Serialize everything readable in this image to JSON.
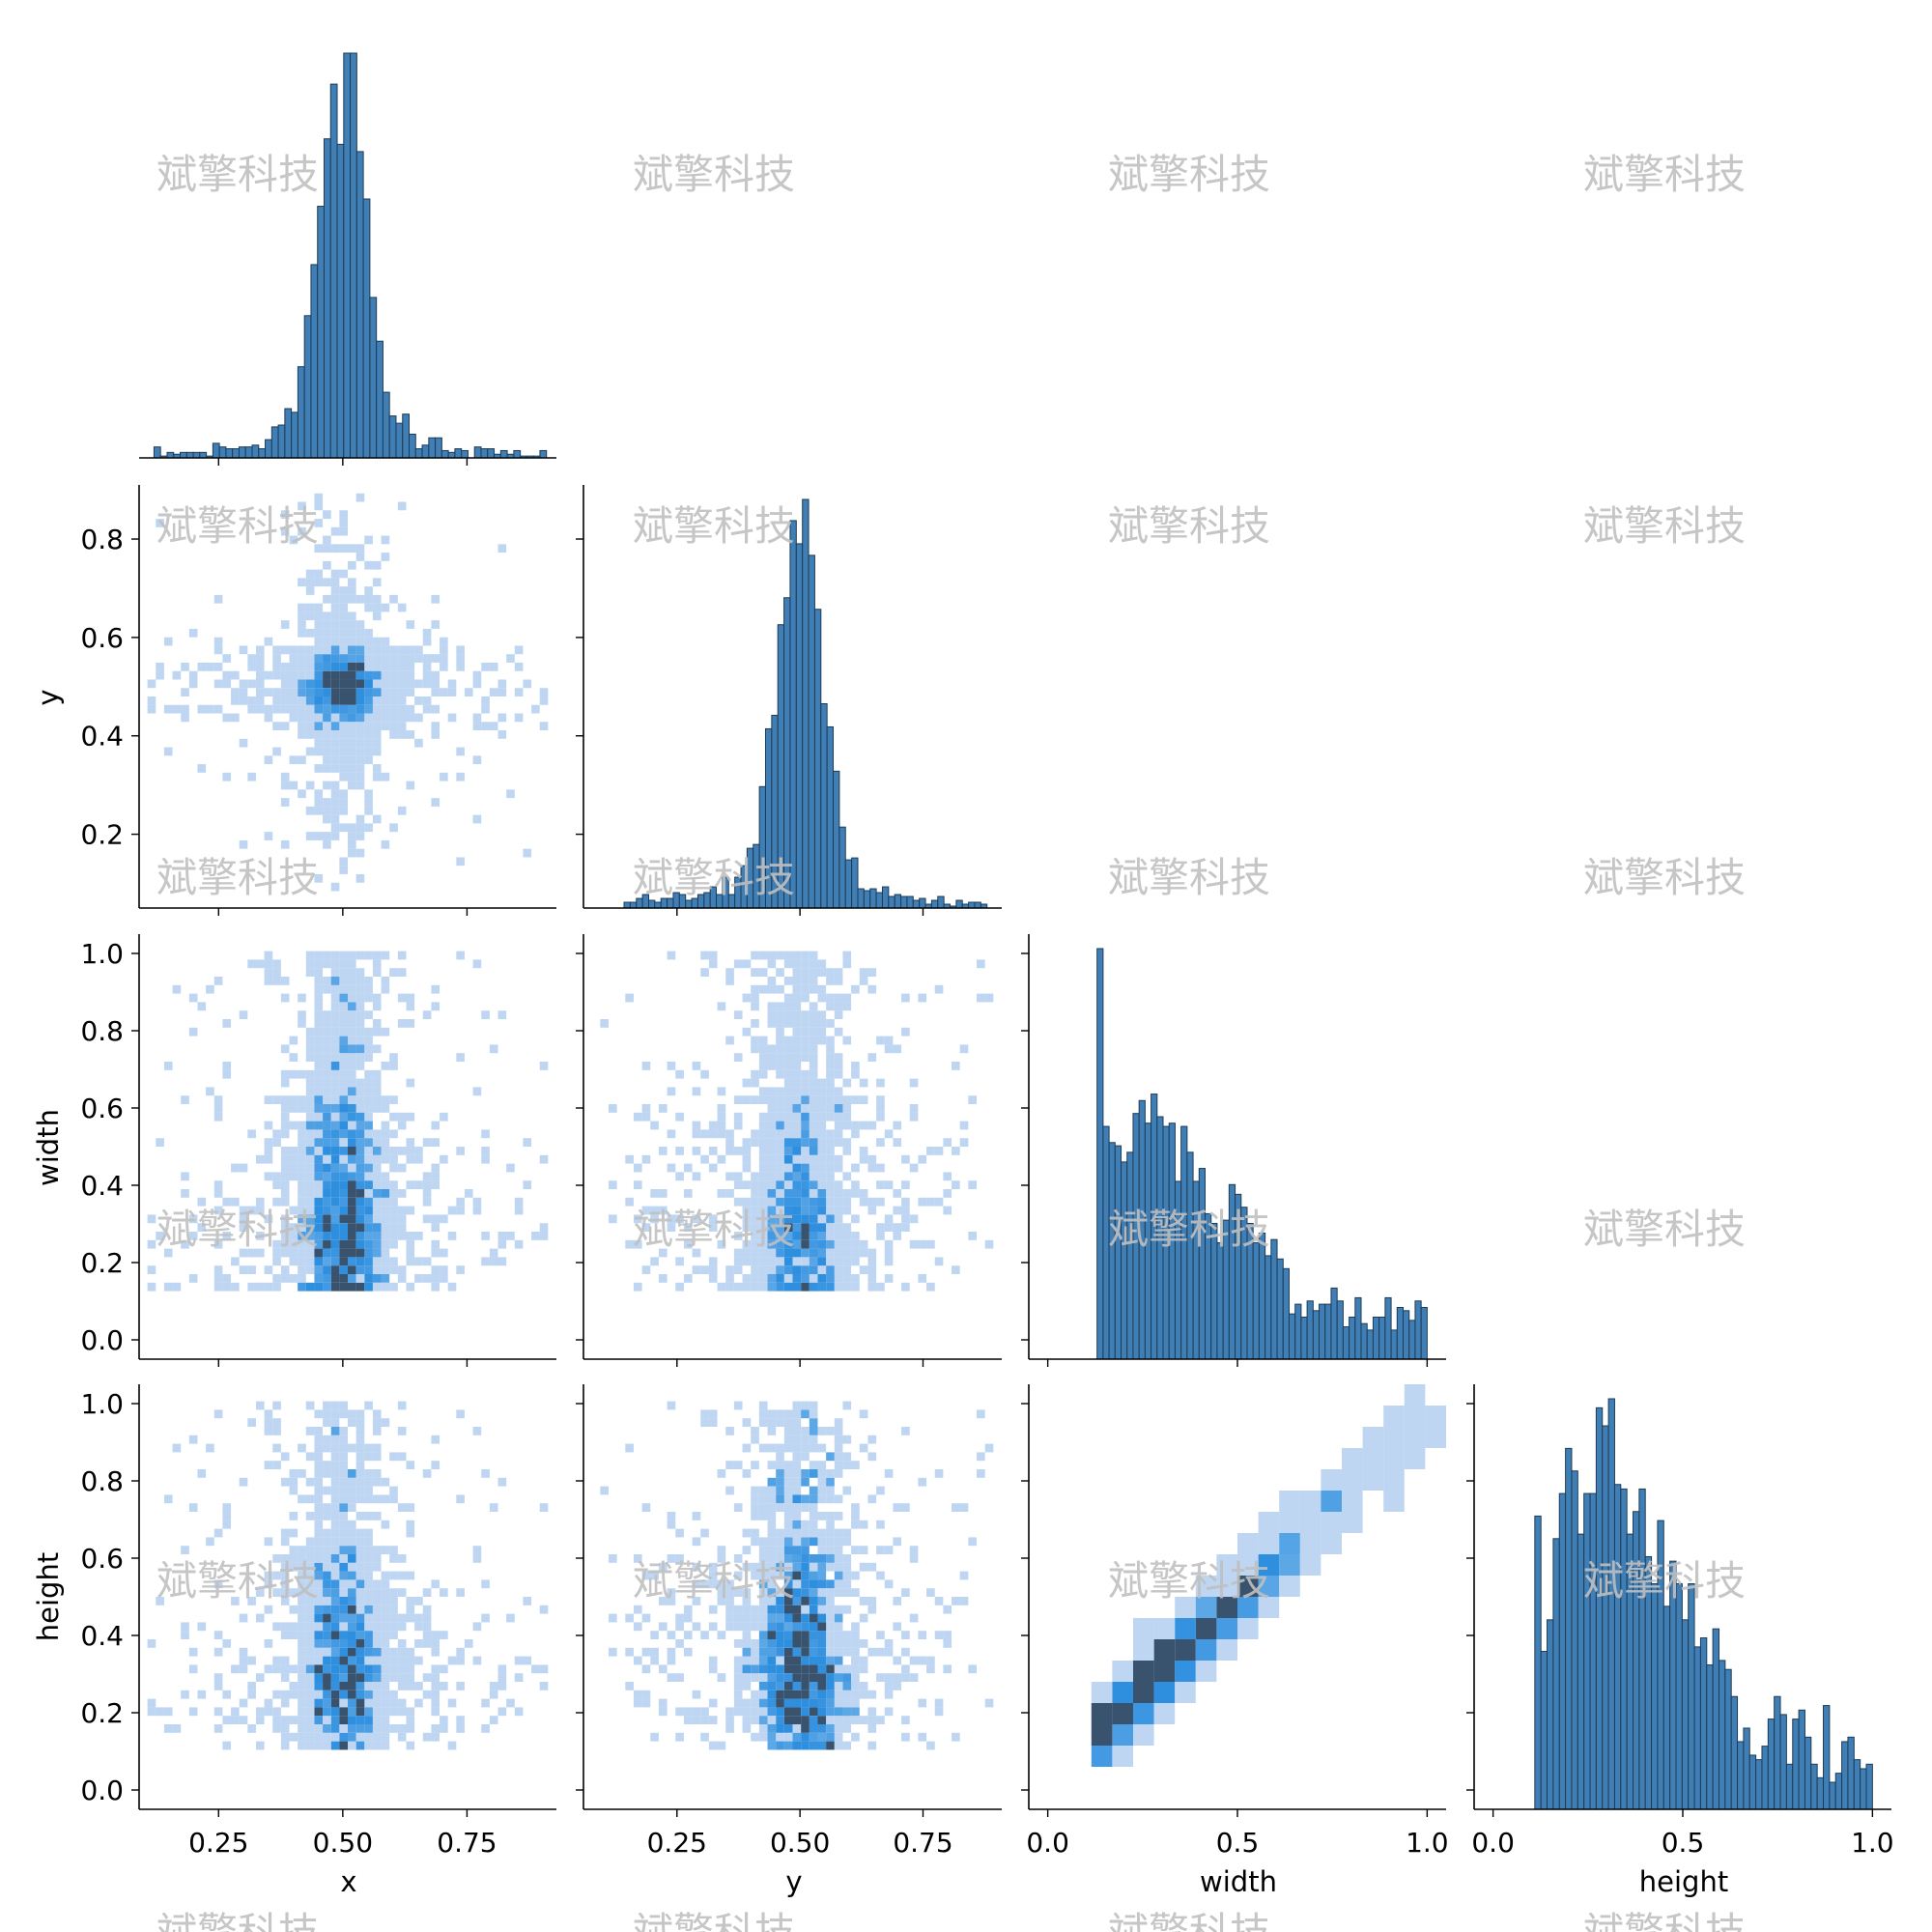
{
  "watermark_text": "斌擎科技",
  "chart_data": {
    "type": "pairplot",
    "variables": [
      "x",
      "y",
      "width",
      "height"
    ],
    "layout": "lower-triangle",
    "diag_kind": "histogram",
    "offdiag_kind": "2d-histogram",
    "colors": {
      "hist_fill": "#3f7fb5",
      "hist_edge": "#1f3b55",
      "heat_light": "#a9c8ef",
      "heat_mid": "#2f8fdf",
      "heat_dark": "#2e4a66"
    },
    "axes": {
      "x": {
        "label": "x",
        "lim": [
          0.09,
          0.93
        ],
        "ticks": [
          0.25,
          0.5,
          0.75
        ],
        "tick_labels": [
          "0.25",
          "0.50",
          "0.75"
        ]
      },
      "y": {
        "label": "y",
        "lim": [
          0.05,
          0.91
        ],
        "ticks": [
          0.2,
          0.4,
          0.6,
          0.8
        ],
        "tick_labels": [
          "0.2",
          "0.4",
          "0.6",
          "0.8"
        ],
        "xticks": [
          0.25,
          0.5,
          0.75
        ],
        "xtick_labels": [
          "0.25",
          "0.50",
          "0.75"
        ],
        "xlim": [
          0.06,
          0.91
        ]
      },
      "width": {
        "label": "width",
        "lim": [
          -0.05,
          1.05
        ],
        "ticks": [
          0.0,
          0.2,
          0.4,
          0.6,
          0.8,
          1.0
        ],
        "tick_labels": [
          "0.0",
          "0.2",
          "0.4",
          "0.6",
          "0.8",
          "1.0"
        ],
        "xticks": [
          0.0,
          0.5,
          1.0
        ],
        "xtick_labels": [
          "0.0",
          "0.5",
          "1.0"
        ]
      },
      "height": {
        "label": "height",
        "lim": [
          -0.05,
          1.05
        ],
        "ticks": [
          0.0,
          0.2,
          0.4,
          0.6,
          0.8,
          1.0
        ],
        "tick_labels": [
          "0.0",
          "0.2",
          "0.4",
          "0.6",
          "0.8",
          "1.0"
        ],
        "xticks": [
          0.0,
          0.5,
          1.0
        ],
        "xtick_labels": [
          "0.0",
          "0.5",
          "1.0"
        ]
      }
    },
    "distributions": {
      "x": {
        "center": 0.5,
        "spread": 0.045,
        "tail_min": 0.12,
        "tail_max": 0.91,
        "hist_bins": 60,
        "hist_range": [
          0.12,
          0.91
        ]
      },
      "y": {
        "center": 0.5,
        "spread": 0.045,
        "tail_min": 0.1,
        "tail_max": 0.88,
        "hist_bins": 60,
        "hist_range": [
          0.13,
          0.88
        ]
      },
      "width": {
        "min": 0.13,
        "max": 1.0,
        "mode": 0.25,
        "hist_bins": 55,
        "hist_range": [
          0.13,
          1.0
        ]
      },
      "height": {
        "min": 0.11,
        "max": 1.0,
        "mode": 0.3,
        "hist_bins": 55,
        "hist_range": [
          0.11,
          1.0
        ]
      },
      "width_height_correlation": 0.95
    }
  }
}
